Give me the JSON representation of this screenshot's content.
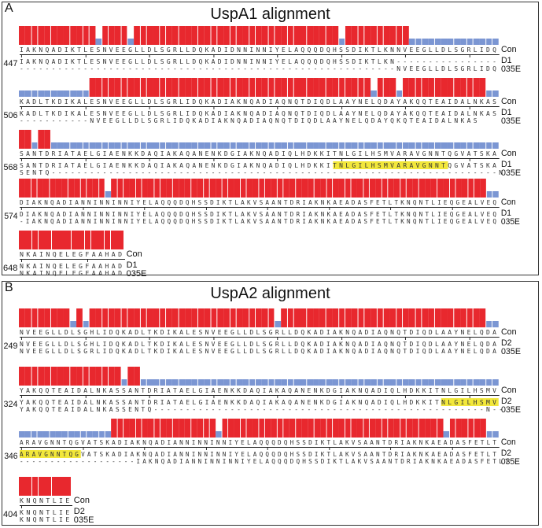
{
  "panelA": {
    "letter": "A",
    "title": "UspA1 alignment",
    "blocks": [
      {
        "start": "447",
        "con": "IAKNQADIKTLESNVEEGLLDLSGRLLDQKADIDNNINNIYELAQQQDQHSSDIKTLKNNVEEGLLDLSGRLIDQ",
        "d1": "IAKNQADIKTLESNVEEGLLDLSGRLLDQKADIDNNINNIYELAQQQDQHSSDIKTLKN----------------",
        "e": "-----------------------------------------------------------NVEEGLLDLSGRLIDQ",
        "hi": "1111111111110111101111111111111111111111111111111101111111111000000000000000",
        "lab1": "D1",
        "lab2": "035E"
      },
      {
        "start": "506",
        "con": "KADLTKDIKALESNVEEGLLDLSGRLIDQKADIAKNQADIAQNQTDIQDLAAYNELQDAYAKQQTEAIDALNKAS",
        "d1": "KADLTKDIKALESNVEEGLLDLSGRLIDQKADIAKNQADIAQNQTDIQDLAAYNELQDAYAKQQTEAIDALNKAS",
        "e": "-----------NVEEGLLDLSGRLIDQKADIAKNQADIAQNQTDIQDLAAYNELQDAYQKQTEAIDALNKAS",
        "hi": "0000000000011111111111111111111111111111111111111111111011101111111111111",
        "lab1": "D1",
        "lab2": "035E"
      },
      {
        "start": "568",
        "con": "SANTDRIATAELGIAENKKDAQIAKAQANENKDGIAKNQADIQLHDKKITNLGILHSMVARAVGNNTQGVATSKA",
        "d1": "SANTDRIATAELGIAENKKDAQIAKAQANENKDGIAKNQADIQLHDKKITNLGILHSMVARAVGNNTQGVATSKA",
        "e": "SENTQ----------------------------------------------------------------------N",
        "hi": "11011000000000000000000000000000000000000000000000000000000000000000000000",
        "hlStart": 49,
        "hlEnd": 67,
        "lab1": "D1",
        "lab2": "035E"
      },
      {
        "start": "574",
        "con": "DIAKNQADIANNINNINNIYELAQQQDQHSSDIKTLAKVSAANTDRIAKNKAEADASFETLTKNQNTLIEQGEALVEQ",
        "d1": "DIAKNQADIANNINNINNIYELAQQQDQHSSDIKTLAKVSAANTDRIAKNKAEADASFETLTKNQNTLIEQGEALVEQ",
        "e": "-IAKNQADIANNINNINNIYELAQQQDQHSSDIKTLAKVSAANTDRIAKNKAEADASFETLTKNQNTLIEQGEALVEQ",
        "hi": "1111111111111101111111111111111111111111111111111111111111111111111111111111",
        "lab1": "D1",
        "lab2": "035E"
      },
      {
        "start": "648",
        "con": "NKAINQELEGFAAHAD",
        "d1": "NKAINQELEGFAAHAD",
        "e": "NKAINQELEGFAAHAD",
        "hi": "1111111111111111",
        "lab1": "D1",
        "lab2": "035E"
      }
    ]
  },
  "panelB": {
    "letter": "B",
    "title": "UspA2 alignment",
    "blocks": [
      {
        "start": "249",
        "con": "NVEEGLLDLSGHLIDQKADLTKDIKALESNVEEGLLDLSGRLLDQKADIAKNQADIAQNQTDIQDLAAYNELQDA",
        "d1": "NVEEGLLDLSGHLIDQKADLTKDIKALESNVEEGLLDLSGRLLDQKADIAKNQADIAQNQTDIQDLAAYNELQDA",
        "e": "NVEEGLLDLSGRLIDQKADLTKDIKALESNVEEGLLDLSGRLLDQKADIAKNQADIAQNQTDIQDLAAYNELQDA",
        "hi": "1111111101011111111111111111111111111111011111111111111111111111111111111",
        "lab1": "D2",
        "lab2": "035E"
      },
      {
        "start": "324",
        "con": "YAKQQTEAIDALNKASSANTDRIATAELGIAENKKDAQIAKAQANENKDGIAKNQADIQLHDKKITNLGILHSMV",
        "d1": "YAKQQTEAIDALNKASSANTDRIATAELGIAENKKDAQIAKAQANENKDGIAKNQADIQLHDKKITNLGILHSMV",
        "e": "YAKQQTEAIDALNKASSENTQ----------------------------------------------------N--",
        "hi": "111111111111111101100000000000000000000000000000000000000000000000000000000",
        "hlStart": 66,
        "hlEnd": 75,
        "lab1": "D2",
        "lab2": "035E"
      },
      {
        "start": "346",
        "con": "ARAVGNNTQGVATSKADIAKNQADIANNINNINNIYELAQQQDQHSSDIKTLAKVSAANTDRIAKNKAEADASFETLT",
        "d1": "ARAVGNNTQGVATSKADIAKNQADIANNINNINNIYELAQQQDQHSSDIKTLAKVSAANTDRIAKNKAEADASFETLT",
        "e": "-------------------IAKNQADIANNINNINNIYELAQQQDQHSSDIKTLAKVSAANTDRIAKNKAEADASFETLT",
        "hi": "0000000000000001111111111111111101111111111111111111111111111111111110111111",
        "hlStart": 0,
        "hlEnd": 10,
        "lab1": "D2",
        "lab2": "035E"
      },
      {
        "start": "404",
        "con": "KNQNTLIE",
        "d1": "KNQNTLIE",
        "e": "KNQNTLIE",
        "hi": "11111111",
        "lab1": "D2",
        "lab2": "035E"
      }
    ]
  },
  "conLabel": "Con"
}
